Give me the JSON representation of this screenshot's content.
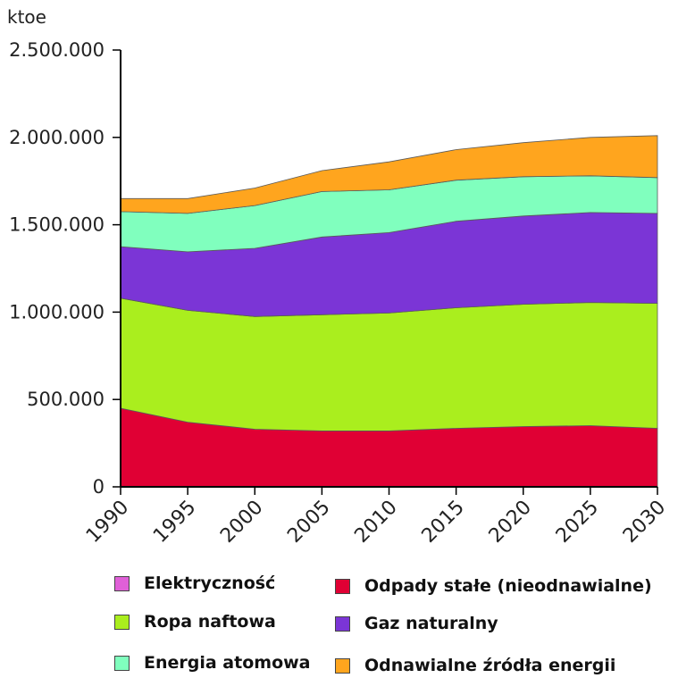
{
  "chart_data": {
    "type": "area",
    "stacked": true,
    "unit_label": "ktoe",
    "x": [
      "1990",
      "1995",
      "2000",
      "2005",
      "2010",
      "2015",
      "2020",
      "2025",
      "2030"
    ],
    "yticks": [
      {
        "value": 0,
        "label": "0"
      },
      {
        "value": 500000,
        "label": "500.000"
      },
      {
        "value": 1000000,
        "label": "1.000.000"
      },
      {
        "value": 1500000,
        "label": "1.500.000"
      },
      {
        "value": 2000000,
        "label": "2.000.000"
      },
      {
        "value": 2500000,
        "label": "2.500.000"
      }
    ],
    "ylim": [
      0,
      2500000
    ],
    "series": [
      {
        "name": "Odpady stałe (nieodnawialne)",
        "color": "#e00034",
        "values": [
          450000,
          370000,
          330000,
          320000,
          320000,
          335000,
          345000,
          350000,
          335000
        ]
      },
      {
        "name": "Ropa naftowa",
        "color": "#aaee1e",
        "values": [
          630000,
          640000,
          645000,
          665000,
          675000,
          690000,
          700000,
          705000,
          715000
        ]
      },
      {
        "name": "Gaz naturalny",
        "color": "#7b35d6",
        "values": [
          295000,
          335000,
          390000,
          445000,
          460000,
          495000,
          505000,
          515000,
          515000
        ]
      },
      {
        "name": "Energia atomowa",
        "color": "#80ffbe",
        "values": [
          200000,
          220000,
          245000,
          260000,
          245000,
          235000,
          225000,
          210000,
          205000
        ]
      },
      {
        "name": "Elektryczność",
        "color": "#e060d8",
        "values": [
          0,
          0,
          0,
          0,
          0,
          0,
          0,
          0,
          0
        ]
      },
      {
        "name": "Odnawialne źródła energii",
        "color": "#ffa51e",
        "values": [
          75000,
          85000,
          100000,
          120000,
          160000,
          175000,
          195000,
          220000,
          240000
        ]
      }
    ]
  },
  "legend": [
    {
      "label": "Elektryczność",
      "color": "#e060d8"
    },
    {
      "label": "Odpady stałe (nieodnawialne)",
      "color": "#e00034"
    },
    {
      "label": "Ropa naftowa",
      "color": "#aaee1e"
    },
    {
      "label": "Gaz naturalny",
      "color": "#7b35d6"
    },
    {
      "label": "Energia atomowa",
      "color": "#80ffbe"
    },
    {
      "label": "Odnawialne źródła energii",
      "color": "#ffa51e"
    }
  ]
}
